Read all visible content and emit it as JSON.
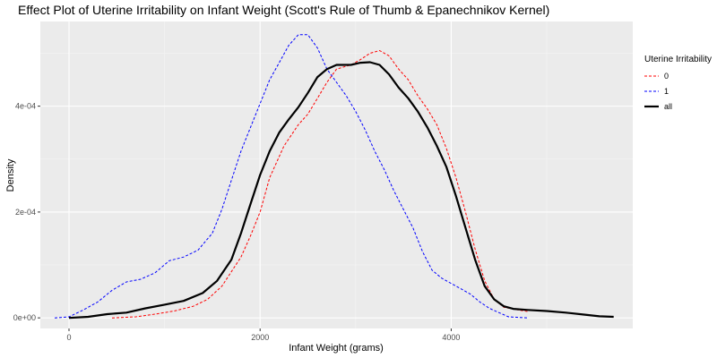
{
  "chart_data": {
    "type": "line",
    "title": "Effect Plot of Uterine Irritability on Infant Weight (Scott's Rule of Thumb & Epanechnikov Kernel)",
    "xlabel": "Infant Weight (grams)",
    "ylabel": "Density",
    "xlim": [
      -300,
      5900
    ],
    "ylim": [
      -2e-05,
      0.00056
    ],
    "x_ticks": [
      0,
      2000,
      4000
    ],
    "x_tick_labels": [
      "0",
      "2000",
      "4000"
    ],
    "y_ticks": [
      0,
      0.0002,
      0.0004
    ],
    "y_tick_labels": [
      "0e+00",
      "2e-04",
      "4e-04"
    ],
    "grid": true,
    "legend": {
      "title": "Uterine Irritability",
      "position": "right"
    },
    "series": [
      {
        "name": "0",
        "color": "#ff0000",
        "style": "dashed",
        "points": [
          [
            450,
            0
          ],
          [
            700,
            2e-06
          ],
          [
            900,
            7e-06
          ],
          [
            1100,
            1.3e-05
          ],
          [
            1300,
            2.2e-05
          ],
          [
            1450,
            3.5e-05
          ],
          [
            1600,
            6e-05
          ],
          [
            1800,
            0.000115
          ],
          [
            1900,
            0.000155
          ],
          [
            2000,
            0.0002
          ],
          [
            2100,
            0.000265
          ],
          [
            2250,
            0.000325
          ],
          [
            2400,
            0.000365
          ],
          [
            2500,
            0.000385
          ],
          [
            2600,
            0.000415
          ],
          [
            2700,
            0.000445
          ],
          [
            2800,
            0.00047
          ],
          [
            2950,
            0.000478
          ],
          [
            3050,
            0.000488
          ],
          [
            3150,
            0.0005
          ],
          [
            3250,
            0.000505
          ],
          [
            3350,
            0.000495
          ],
          [
            3450,
            0.00047
          ],
          [
            3550,
            0.00045
          ],
          [
            3650,
            0.00042
          ],
          [
            3750,
            0.000395
          ],
          [
            3850,
            0.000365
          ],
          [
            3950,
            0.00032
          ],
          [
            4050,
            0.000265
          ],
          [
            4150,
            0.0002
          ],
          [
            4250,
            0.00013
          ],
          [
            4350,
            7e-05
          ],
          [
            4450,
            3.5e-05
          ],
          [
            4550,
            2e-05
          ],
          [
            4700,
            1.5e-05
          ],
          [
            4800,
            1.2e-05
          ]
        ]
      },
      {
        "name": "1",
        "color": "#0000ff",
        "style": "dashed",
        "points": [
          [
            -150,
            0
          ],
          [
            0,
            2e-06
          ],
          [
            150,
            1.5e-05
          ],
          [
            300,
            3e-05
          ],
          [
            450,
            5.2e-05
          ],
          [
            600,
            6.8e-05
          ],
          [
            750,
            7.3e-05
          ],
          [
            900,
            8.5e-05
          ],
          [
            1050,
            0.000108
          ],
          [
            1200,
            0.000115
          ],
          [
            1350,
            0.000128
          ],
          [
            1500,
            0.00016
          ],
          [
            1600,
            0.000205
          ],
          [
            1700,
            0.00026
          ],
          [
            1800,
            0.000315
          ],
          [
            1900,
            0.00036
          ],
          [
            2000,
            0.000405
          ],
          [
            2100,
            0.00045
          ],
          [
            2200,
            0.000482
          ],
          [
            2300,
            0.000515
          ],
          [
            2400,
            0.000535
          ],
          [
            2500,
            0.000535
          ],
          [
            2600,
            0.00051
          ],
          [
            2700,
            0.00047
          ],
          [
            2800,
            0.000445
          ],
          [
            2900,
            0.00042
          ],
          [
            3000,
            0.00039
          ],
          [
            3100,
            0.000355
          ],
          [
            3200,
            0.000315
          ],
          [
            3300,
            0.00028
          ],
          [
            3400,
            0.00024
          ],
          [
            3500,
            0.000205
          ],
          [
            3600,
            0.00017
          ],
          [
            3700,
            0.000125
          ],
          [
            3800,
            9e-05
          ],
          [
            3900,
            7.5e-05
          ],
          [
            4000,
            6.5e-05
          ],
          [
            4100,
            5.5e-05
          ],
          [
            4200,
            4.5e-05
          ],
          [
            4300,
            3e-05
          ],
          [
            4400,
            1.8e-05
          ],
          [
            4500,
            1e-05
          ],
          [
            4600,
            2e-06
          ],
          [
            4800,
            0
          ]
        ]
      },
      {
        "name": "all",
        "color": "#000000",
        "style": "solid",
        "points": [
          [
            0,
            0
          ],
          [
            200,
            2e-06
          ],
          [
            400,
            7e-06
          ],
          [
            600,
            1e-05
          ],
          [
            800,
            1.8e-05
          ],
          [
            1000,
            2.5e-05
          ],
          [
            1200,
            3.2e-05
          ],
          [
            1400,
            4.7e-05
          ],
          [
            1550,
            7e-05
          ],
          [
            1700,
            0.00011
          ],
          [
            1800,
            0.00016
          ],
          [
            1900,
            0.000215
          ],
          [
            2000,
            0.00027
          ],
          [
            2100,
            0.000315
          ],
          [
            2200,
            0.00035
          ],
          [
            2300,
            0.000375
          ],
          [
            2400,
            0.000398
          ],
          [
            2500,
            0.000425
          ],
          [
            2600,
            0.000455
          ],
          [
            2700,
            0.00047
          ],
          [
            2800,
            0.000478
          ],
          [
            2950,
            0.000478
          ],
          [
            3050,
            0.000482
          ],
          [
            3150,
            0.000483
          ],
          [
            3250,
            0.000478
          ],
          [
            3350,
            0.00046
          ],
          [
            3450,
            0.000435
          ],
          [
            3550,
            0.000415
          ],
          [
            3650,
            0.00039
          ],
          [
            3750,
            0.00036
          ],
          [
            3850,
            0.000325
          ],
          [
            3950,
            0.000285
          ],
          [
            4050,
            0.00023
          ],
          [
            4150,
            0.00017
          ],
          [
            4250,
            0.00011
          ],
          [
            4350,
            6e-05
          ],
          [
            4450,
            3.5e-05
          ],
          [
            4550,
            2.2e-05
          ],
          [
            4650,
            1.7e-05
          ],
          [
            4800,
            1.5e-05
          ],
          [
            5000,
            1.3e-05
          ],
          [
            5200,
            1e-05
          ],
          [
            5400,
            6e-06
          ],
          [
            5550,
            3e-06
          ],
          [
            5700,
            2e-06
          ]
        ]
      }
    ]
  }
}
